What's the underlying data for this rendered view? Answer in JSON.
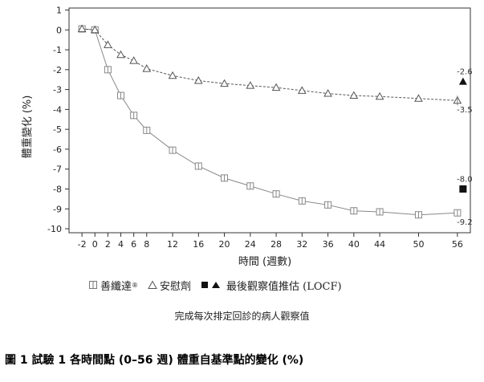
{
  "chart_data": {
    "type": "line",
    "ylabel": "體重變化 (%)",
    "xlabel": "時間 (週數)",
    "x_ticks": [
      -2,
      0,
      2,
      4,
      6,
      8,
      12,
      16,
      20,
      24,
      28,
      32,
      36,
      40,
      44,
      50,
      56
    ],
    "y_ticks": [
      1,
      0,
      -1,
      -2,
      -3,
      -4,
      -5,
      -6,
      -7,
      -8,
      -9,
      -10
    ],
    "xlim": [
      -4,
      58
    ],
    "ylim": [
      -10.2,
      1.1
    ],
    "series": [
      {
        "name": "善纖達",
        "marker": "square",
        "line_style": "solid",
        "color": "#888888",
        "x": [
          -2,
          0,
          2,
          4,
          6,
          8,
          12,
          16,
          20,
          24,
          28,
          32,
          36,
          40,
          44,
          50,
          56
        ],
        "y": [
          0.05,
          0.0,
          -2.0,
          -3.3,
          -4.3,
          -5.05,
          -6.05,
          -6.85,
          -7.45,
          -7.85,
          -8.25,
          -8.6,
          -8.8,
          -9.1,
          -9.15,
          -9.3,
          -9.2
        ]
      },
      {
        "name": "安慰劑",
        "marker": "triangle",
        "line_style": "dashed",
        "color": "#555555",
        "x": [
          -2,
          0,
          2,
          4,
          6,
          8,
          12,
          16,
          20,
          24,
          28,
          32,
          36,
          40,
          44,
          50,
          56
        ],
        "y": [
          0.05,
          0.0,
          -0.75,
          -1.25,
          -1.55,
          -1.95,
          -2.3,
          -2.55,
          -2.7,
          -2.8,
          -2.9,
          -3.05,
          -3.2,
          -3.3,
          -3.35,
          -3.45,
          -3.55
        ]
      }
    ],
    "locf": {
      "label": "最後觀察值推估 (LOCF)",
      "points": [
        {
          "series": "善纖達",
          "x": 56,
          "y": -8.0,
          "marker": "square-filled"
        },
        {
          "series": "安慰劑",
          "x": 56,
          "y": -2.6,
          "marker": "triangle-filled"
        }
      ]
    },
    "annotations": [
      {
        "text": "-2.6",
        "x": 56,
        "y": -2.6,
        "position": "above"
      },
      {
        "text": "-3.5",
        "x": 56,
        "y": -3.55,
        "position": "below"
      },
      {
        "text": "-8.0",
        "x": 56,
        "y": -8.0,
        "position": "above"
      },
      {
        "text": "-9.2",
        "x": 56,
        "y": -9.2,
        "position": "below"
      }
    ],
    "grid": false,
    "legend_position": "bottom"
  },
  "legend": {
    "series1_label": "善纖達",
    "series1_sup": "®",
    "series2_label": "安慰劑",
    "locf_label": "最後觀察值推估 (LOCF)"
  },
  "note": "完成每次排定回診的病人觀察值",
  "caption": "圖 1 試驗 1 各時間點 (0–56 週) 體重自基準點的變化 (%)"
}
